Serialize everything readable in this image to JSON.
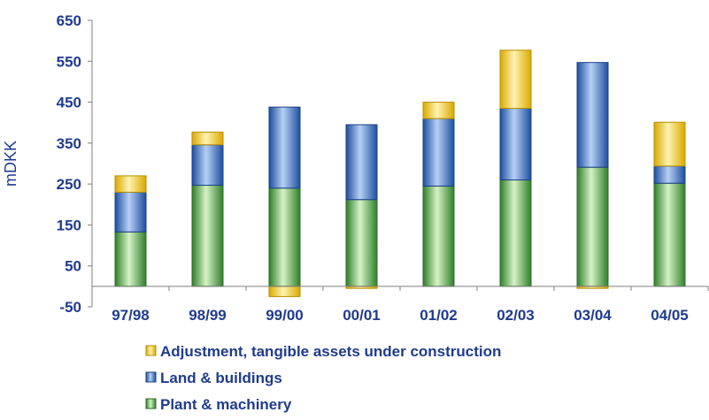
{
  "chart_data": {
    "type": "bar",
    "stacked": true,
    "ylabel": "mDKK",
    "xlabel": "",
    "ylim": [
      -50,
      650
    ],
    "yticks": [
      -50,
      50,
      150,
      250,
      350,
      450,
      550,
      650
    ],
    "categories": [
      "97/98",
      "98/99",
      "99/00",
      "00/01",
      "01/02",
      "02/03",
      "03/04",
      "04/05"
    ],
    "series": [
      {
        "name": "Plant & machinery",
        "color": "#6fbf4f",
        "values": [
          133,
          247,
          240,
          212,
          245,
          260,
          291,
          252
        ]
      },
      {
        "name": "Land & buildings",
        "color": "#4a7ed0",
        "values": [
          97,
          99,
          198,
          183,
          165,
          175,
          256,
          42
        ]
      },
      {
        "name": "Adjustment, tangible assets under construction",
        "color": "#ffd84a",
        "values": [
          40,
          31,
          -25,
          -5,
          40,
          142,
          -5,
          107
        ]
      }
    ],
    "legend": {
      "position": "bottom",
      "order": [
        "Adjustment, tangible assets under construction",
        "Land & buildings",
        "Plant & machinery"
      ]
    }
  }
}
